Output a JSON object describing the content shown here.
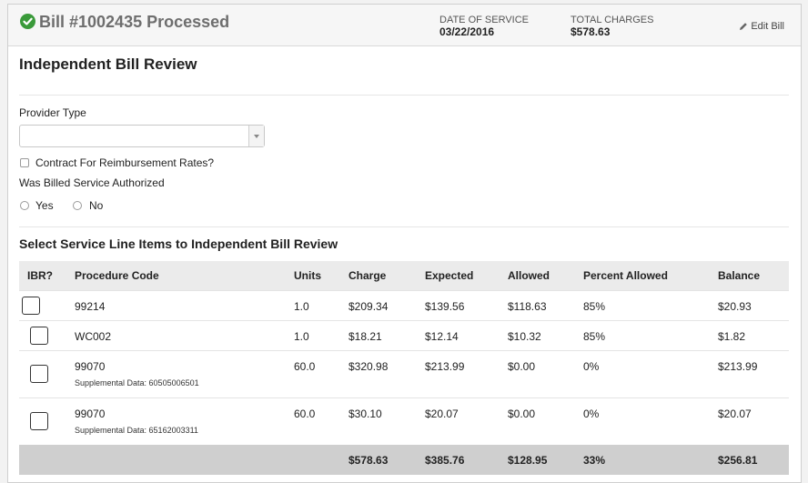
{
  "header": {
    "title": "Bill #1002435 Processed",
    "date_of_service_label": "DATE OF SERVICE",
    "date_of_service": "03/22/2016",
    "total_charges_label": "TOTAL CHARGES",
    "total_charges": "$578.63",
    "edit_label": "Edit Bill",
    "status_color": "#3a9a3a"
  },
  "review": {
    "title": "Independent Bill Review",
    "provider_type_label": "Provider Type",
    "provider_type_value": "",
    "contract_label": "Contract For Reimbursement Rates?",
    "authorized_label": "Was Billed Service Authorized",
    "yes_label": "Yes",
    "no_label": "No"
  },
  "line_items": {
    "title": "Select Service Line Items to Independent Bill Review",
    "columns": [
      "IBR?",
      "Procedure Code",
      "Units",
      "Charge",
      "Expected",
      "Allowed",
      "Percent Allowed",
      "Balance"
    ],
    "rows": [
      {
        "code": "99214",
        "supplemental": "",
        "units": "1.0",
        "charge": "$209.34",
        "expected": "$139.56",
        "allowed": "$118.63",
        "percent": "85%",
        "balance": "$20.93"
      },
      {
        "code": "WC002",
        "supplemental": "",
        "units": "1.0",
        "charge": "$18.21",
        "expected": "$12.14",
        "allowed": "$10.32",
        "percent": "85%",
        "balance": "$1.82"
      },
      {
        "code": "99070",
        "supplemental": "Supplemental Data: 60505006501",
        "units": "60.0",
        "charge": "$320.98",
        "expected": "$213.99",
        "allowed": "$0.00",
        "percent": "0%",
        "balance": "$213.99"
      },
      {
        "code": "99070",
        "supplemental": "Supplemental Data: 65162003311",
        "units": "60.0",
        "charge": "$30.10",
        "expected": "$20.07",
        "allowed": "$0.00",
        "percent": "0%",
        "balance": "$20.07"
      }
    ],
    "totals": {
      "charge": "$578.63",
      "expected": "$385.76",
      "allowed": "$128.95",
      "percent": "33%",
      "balance": "$256.81"
    }
  }
}
